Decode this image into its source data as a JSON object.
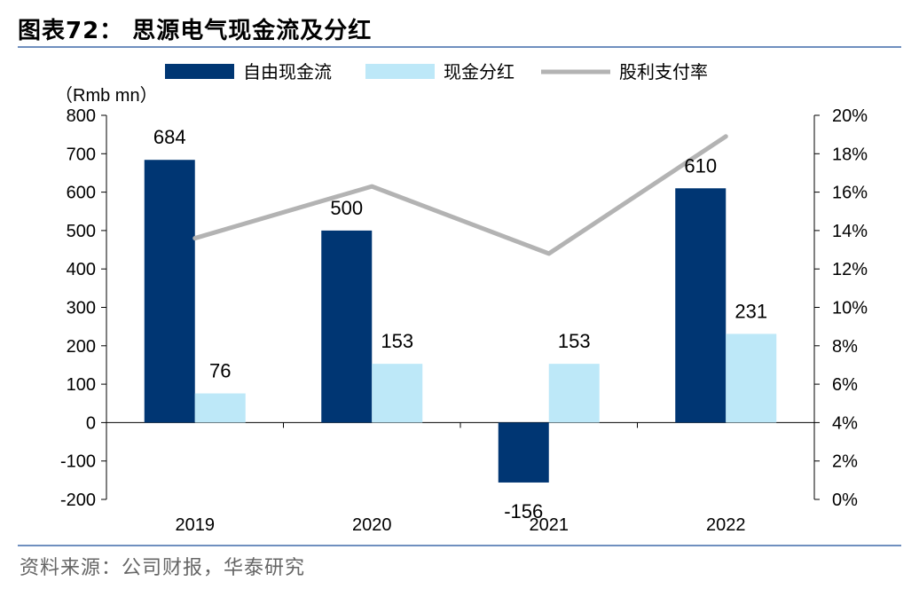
{
  "figure_title": "图表72： 思源电气现金流及分红",
  "source": "资料来源：公司财报，华泰研究",
  "colors": {
    "fcf": "#003673",
    "dividend": "#bde8f8",
    "payout": "#b3b3b3",
    "rule": "#6f8fbf"
  },
  "chart_data": {
    "type": "bar",
    "categories": [
      "2019",
      "2020",
      "2021",
      "2022"
    ],
    "series": [
      {
        "name": "自由现金流",
        "kind": "bar",
        "axis": "left",
        "values": [
          684,
          500,
          -156,
          610
        ]
      },
      {
        "name": "现金分红",
        "kind": "bar",
        "axis": "left",
        "values": [
          76,
          153,
          153,
          231
        ]
      },
      {
        "name": "股利支付率",
        "kind": "line",
        "axis": "right",
        "values": [
          13.6,
          16.3,
          12.8,
          18.9
        ]
      }
    ],
    "data_labels": {
      "自由现金流": [
        "684",
        "500",
        "-156",
        "610"
      ],
      "现金分红": [
        "76",
        "153",
        "153",
        "231"
      ]
    },
    "ylabel": "（Rmb mn）",
    "ylim": [
      -200,
      800
    ],
    "yticks": [
      "-200",
      "-100",
      "0",
      "100",
      "200",
      "300",
      "400",
      "500",
      "600",
      "700",
      "800"
    ],
    "y2lim": [
      0,
      20
    ],
    "y2ticks": [
      "0%",
      "2%",
      "4%",
      "6%",
      "8%",
      "10%",
      "12%",
      "14%",
      "16%",
      "18%",
      "20%"
    ],
    "legend_position": "top",
    "grid": false
  }
}
